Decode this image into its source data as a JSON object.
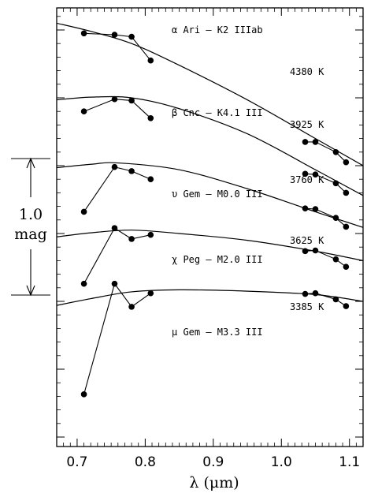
{
  "chart_data": {
    "type": "line",
    "xlabel": "λ (μm)",
    "xlim": [
      0.67,
      1.12
    ],
    "x_ticks": [
      "0.7",
      "0.8",
      "0.9",
      "1.0",
      "1.1"
    ],
    "y_axis_labels_shown": false,
    "grid": false,
    "scale_bar": {
      "value": "1.0",
      "unit": "mag"
    },
    "series": [
      {
        "name": "α Ari – K2 IIIab",
        "star": "α Ari",
        "spectral_type": "K2 IIIab",
        "temperature": "4380 K",
        "points_x": [
          0.71,
          0.755,
          0.78,
          0.808,
          1.035,
          1.05,
          1.08,
          1.095
        ],
        "points_y": [
          0.05,
          0.07,
          0.1,
          0.45,
          1.65,
          1.65,
          1.8,
          1.95
        ],
        "model_x": [
          0.67,
          0.72,
          0.78,
          0.85,
          0.95,
          1.05,
          1.12
        ],
        "model_y": [
          -0.1,
          0.02,
          0.2,
          0.52,
          1.03,
          1.6,
          2.0
        ]
      },
      {
        "name": "β Cnc – K4.1 III",
        "star": "β Cnc",
        "spectral_type": "K4.1 III",
        "temperature": "3925 K",
        "points_x": [
          0.71,
          0.755,
          0.78,
          0.808,
          1.035,
          1.05,
          1.08,
          1.095
        ],
        "points_y": [
          1.2,
          1.02,
          1.04,
          1.3,
          2.12,
          2.13,
          2.26,
          2.4
        ],
        "model_x": [
          0.67,
          0.72,
          0.78,
          0.85,
          0.95,
          1.05,
          1.12
        ],
        "model_y": [
          1.03,
          0.99,
          1.0,
          1.16,
          1.53,
          2.06,
          2.44
        ]
      },
      {
        "name": "υ Gem – M0.0 III",
        "star": "υ Gem",
        "spectral_type": "M0.0 III",
        "temperature": "3760 K",
        "points_x": [
          0.71,
          0.755,
          0.78,
          0.808,
          1.035,
          1.05,
          1.08,
          1.095
        ],
        "points_y": [
          2.68,
          2.02,
          2.08,
          2.2,
          2.63,
          2.64,
          2.77,
          2.9
        ],
        "model_x": [
          0.67,
          0.72,
          0.76,
          0.85,
          0.95,
          1.05,
          1.12
        ],
        "model_y": [
          2.03,
          1.98,
          1.96,
          2.06,
          2.34,
          2.68,
          2.91
        ]
      },
      {
        "name": "χ Peg – M2.0 III",
        "star": "χ Peg",
        "spectral_type": "M2.0 III",
        "temperature": "3625 K",
        "points_x": [
          0.71,
          0.755,
          0.78,
          0.808,
          1.035,
          1.05,
          1.08,
          1.095
        ],
        "points_y": [
          3.74,
          2.92,
          3.08,
          3.02,
          3.26,
          3.25,
          3.38,
          3.49
        ],
        "model_x": [
          0.67,
          0.72,
          0.78,
          0.85,
          0.95,
          1.05,
          1.12
        ],
        "model_y": [
          3.05,
          2.99,
          2.95,
          3.0,
          3.1,
          3.26,
          3.4
        ]
      },
      {
        "name": "μ Gem – M3.3 III",
        "star": "μ Gem",
        "spectral_type": "M3.3 III",
        "temperature": "3385 K",
        "points_x": [
          0.71,
          0.755,
          0.78,
          0.808,
          1.035,
          1.05,
          1.08,
          1.095
        ],
        "points_y": [
          5.37,
          3.74,
          4.08,
          3.88,
          3.89,
          3.88,
          3.97,
          4.07
        ],
        "model_x": [
          0.67,
          0.72,
          0.78,
          0.85,
          0.95,
          1.05,
          1.12
        ],
        "model_y": [
          4.06,
          3.96,
          3.86,
          3.83,
          3.85,
          3.9,
          4.0
        ]
      }
    ]
  }
}
